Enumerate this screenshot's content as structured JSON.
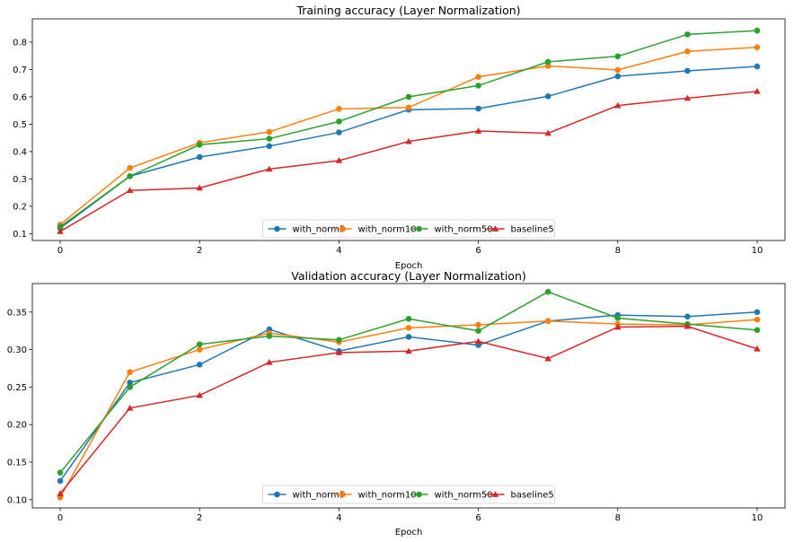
{
  "chart_data": [
    {
      "type": "line",
      "title": "Training accuracy (Layer Normalization)",
      "xlabel": "Epoch",
      "ylabel": "",
      "x": [
        0,
        1,
        2,
        3,
        4,
        5,
        6,
        7,
        8,
        9,
        10
      ],
      "xlim": [
        -0.4,
        10.4
      ],
      "ylim": [
        0.075,
        0.885
      ],
      "xticks": [
        0,
        2,
        4,
        6,
        8,
        10
      ],
      "yticks": [
        0.1,
        0.2,
        0.3,
        0.4,
        0.5,
        0.6,
        0.7,
        0.8
      ],
      "grid": false,
      "legend_position": "bottom-center",
      "series": [
        {
          "name": "with_norm5",
          "color": "#1f77b4",
          "marker": "circle",
          "values": [
            0.12,
            0.31,
            0.38,
            0.42,
            0.47,
            0.553,
            0.557,
            0.602,
            0.675,
            0.695,
            0.711
          ]
        },
        {
          "name": "with_norm10",
          "color": "#ff7f0e",
          "marker": "circle",
          "values": [
            0.133,
            0.34,
            0.432,
            0.472,
            0.556,
            0.561,
            0.673,
            0.713,
            0.698,
            0.766,
            0.781
          ]
        },
        {
          "name": "with_norm50",
          "color": "#2ca02c",
          "marker": "circle",
          "values": [
            0.125,
            0.31,
            0.425,
            0.447,
            0.51,
            0.6,
            0.641,
            0.728,
            0.748,
            0.828,
            0.842
          ]
        },
        {
          "name": "baseline5",
          "color": "#d62728",
          "marker": "triangle",
          "values": [
            0.108,
            0.258,
            0.267,
            0.336,
            0.367,
            0.437,
            0.475,
            0.467,
            0.568,
            0.595,
            0.62
          ]
        }
      ]
    },
    {
      "type": "line",
      "title": "Validation accuracy (Layer Normalization)",
      "xlabel": "Epoch",
      "ylabel": "",
      "x": [
        0,
        1,
        2,
        3,
        4,
        5,
        6,
        7,
        8,
        9,
        10
      ],
      "xlim": [
        -0.4,
        10.4
      ],
      "ylim": [
        0.089,
        0.388
      ],
      "xticks": [
        0,
        2,
        4,
        6,
        8,
        10
      ],
      "yticks": [
        0.1,
        0.15,
        0.2,
        0.25,
        0.3,
        0.35
      ],
      "grid": false,
      "legend_position": "bottom-center",
      "series": [
        {
          "name": "with_norm5",
          "color": "#1f77b4",
          "marker": "circle",
          "values": [
            0.125,
            0.256,
            0.28,
            0.327,
            0.298,
            0.317,
            0.306,
            0.338,
            0.346,
            0.344,
            0.35
          ]
        },
        {
          "name": "with_norm10",
          "color": "#ff7f0e",
          "marker": "circle",
          "values": [
            0.103,
            0.27,
            0.3,
            0.322,
            0.31,
            0.329,
            0.333,
            0.338,
            0.334,
            0.333,
            0.34
          ]
        },
        {
          "name": "with_norm50",
          "color": "#2ca02c",
          "marker": "circle",
          "values": [
            0.136,
            0.25,
            0.307,
            0.318,
            0.313,
            0.341,
            0.325,
            0.377,
            0.342,
            0.334,
            0.326
          ]
        },
        {
          "name": "baseline5",
          "color": "#d62728",
          "marker": "triangle",
          "values": [
            0.108,
            0.222,
            0.239,
            0.283,
            0.296,
            0.298,
            0.311,
            0.288,
            0.33,
            0.331,
            0.301
          ]
        }
      ]
    }
  ]
}
